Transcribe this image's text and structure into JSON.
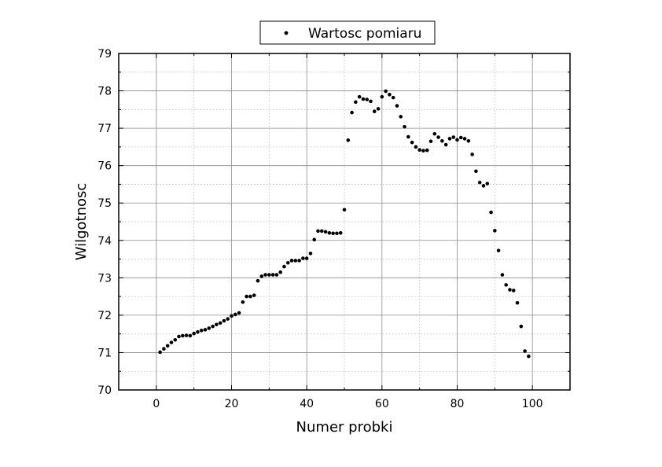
{
  "chart_data": {
    "type": "scatter",
    "xlabel": "Numer probki",
    "ylabel": "Wilgotnosc",
    "xlim": [
      -10,
      110
    ],
    "ylim": [
      70,
      79
    ],
    "xticks": [
      "0",
      "20",
      "40",
      "60",
      "80",
      "100"
    ],
    "yticks": [
      "70",
      "71",
      "72",
      "73",
      "74",
      "75",
      "76",
      "77",
      "78",
      "79"
    ],
    "grid": true,
    "legend_position": "top-center",
    "marker_color": "#000000",
    "series": [
      {
        "name": "Wartosc pomiaru",
        "x": [
          1,
          2,
          3,
          4,
          5,
          6,
          7,
          8,
          9,
          10,
          11,
          12,
          13,
          14,
          15,
          16,
          17,
          18,
          19,
          20,
          21,
          22,
          23,
          24,
          25,
          26,
          27,
          28,
          29,
          30,
          31,
          32,
          33,
          34,
          35,
          36,
          37,
          38,
          39,
          40,
          41,
          42,
          43,
          44,
          45,
          46,
          47,
          48,
          49,
          50,
          51,
          52,
          53,
          54,
          55,
          56,
          57,
          58,
          59,
          60,
          61,
          62,
          63,
          64,
          65,
          66,
          67,
          68,
          69,
          70,
          71,
          72,
          73,
          74,
          75,
          76,
          77,
          78,
          79,
          80,
          81,
          82,
          83,
          84,
          85,
          86,
          87,
          88,
          89,
          90,
          91,
          92,
          93,
          94,
          95,
          96,
          97,
          98,
          99
        ],
        "y": [
          71.01,
          71.1,
          71.18,
          71.27,
          71.34,
          71.43,
          71.45,
          71.46,
          71.45,
          71.51,
          71.55,
          71.59,
          71.61,
          71.65,
          71.7,
          71.75,
          71.79,
          71.85,
          71.9,
          71.98,
          72.02,
          72.06,
          72.35,
          72.5,
          72.5,
          72.53,
          72.92,
          73.04,
          73.08,
          73.08,
          73.08,
          73.08,
          73.15,
          73.3,
          73.4,
          73.46,
          73.46,
          73.46,
          73.52,
          73.52,
          73.65,
          74.02,
          74.25,
          74.25,
          74.23,
          74.2,
          74.19,
          74.19,
          74.2,
          74.82,
          76.68,
          77.42,
          77.7,
          77.84,
          77.78,
          77.77,
          77.72,
          77.45,
          77.52,
          77.84,
          77.99,
          77.9,
          77.82,
          77.6,
          77.31,
          77.04,
          76.77,
          76.62,
          76.5,
          76.42,
          76.4,
          76.41,
          76.65,
          76.85,
          76.76,
          76.66,
          76.56,
          76.72,
          76.76,
          76.69,
          76.75,
          76.72,
          76.66,
          76.3,
          75.85,
          75.55,
          75.46,
          75.52,
          74.75,
          74.26,
          73.73,
          73.08,
          72.81,
          72.68,
          72.66,
          72.33,
          71.7,
          71.04,
          70.9
        ]
      }
    ]
  }
}
